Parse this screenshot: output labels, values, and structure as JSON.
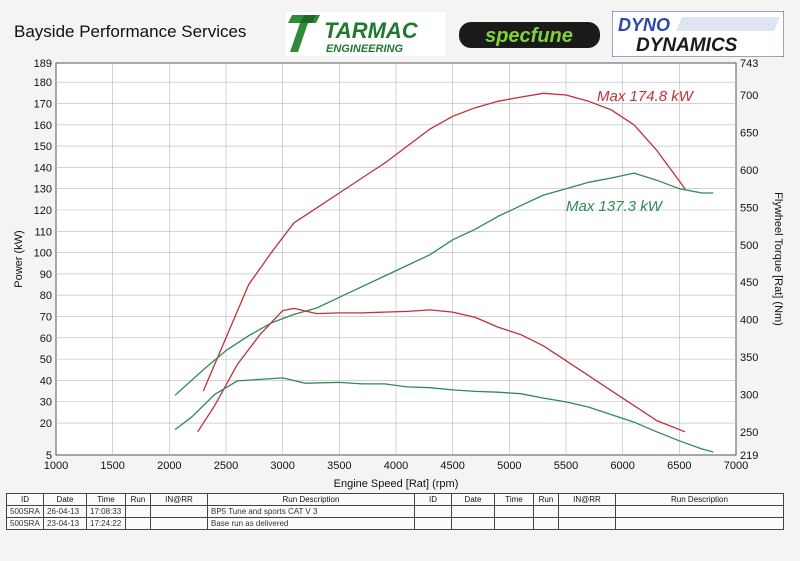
{
  "header": {
    "shop_name": "Bayside Performance Services",
    "logo1": {
      "main": "TARMAC",
      "sub": "ENGINEERING"
    },
    "logo2": {
      "main": "specfune"
    },
    "logo3": {
      "line1": "DYNO",
      "line2": "DYNAMICS"
    }
  },
  "chart_data": {
    "type": "line",
    "xlabel": "Engine Speed [Rat] (rpm)",
    "ylabel": "Power (kW)",
    "y2label": "Flywheel Torque [Rat] (Nm)",
    "xlim": [
      1000,
      7000
    ],
    "ylim": [
      5,
      189
    ],
    "y2lim": [
      219,
      743
    ],
    "grid": true,
    "x_ticks": [
      "1000",
      "1500",
      "2000",
      "2500",
      "3000",
      "3500",
      "4000",
      "4500",
      "5000",
      "5500",
      "6000",
      "6500",
      "7000"
    ],
    "y_ticks": [
      "5",
      "20",
      "30",
      "40",
      "50",
      "60",
      "70",
      "80",
      "90",
      "100",
      "110",
      "120",
      "130",
      "140",
      "150",
      "160",
      "170",
      "180",
      "189"
    ],
    "y2_ticks": [
      "219",
      "250",
      "300",
      "350",
      "400",
      "450",
      "500",
      "550",
      "600",
      "650",
      "700",
      "743"
    ],
    "annotations": [
      {
        "text": "Max 174.8 kW",
        "color": "#c0303a"
      },
      {
        "text": "Max 137.3 kW",
        "color": "#2e8a57"
      }
    ],
    "series": [
      {
        "id": "run1_power",
        "axis": "left",
        "color": "#c0303a",
        "x": [
          2300,
          2500,
          2700,
          2900,
          3100,
          3300,
          3500,
          3700,
          3900,
          4100,
          4300,
          4500,
          4700,
          4900,
          5100,
          5300,
          5500,
          5700,
          5900,
          6100,
          6300,
          6550
        ],
        "y": [
          35,
          60,
          85,
          100,
          114,
          121,
          128,
          135,
          142,
          150,
          158,
          164,
          168,
          171,
          173,
          174.8,
          174,
          171,
          167,
          160,
          148,
          130
        ]
      },
      {
        "id": "run2_power",
        "axis": "left",
        "color": "#2e8a57",
        "x": [
          2050,
          2300,
          2500,
          2700,
          2900,
          3100,
          3300,
          3500,
          3700,
          3900,
          4100,
          4300,
          4500,
          4700,
          4900,
          5100,
          5300,
          5500,
          5700,
          5900,
          6100,
          6300,
          6500,
          6700,
          6800
        ],
        "y": [
          33,
          45,
          54,
          61,
          67,
          71,
          74,
          79,
          84,
          89,
          94,
          99,
          106,
          111,
          117,
          122,
          127,
          130,
          133,
          135,
          137.3,
          134,
          130,
          128,
          128
        ]
      },
      {
        "id": "run1_torque",
        "axis": "right",
        "color": "#c0303a",
        "x": [
          2250,
          2400,
          2600,
          2800,
          3000,
          3100,
          3300,
          3500,
          3700,
          3900,
          4100,
          4300,
          4500,
          4700,
          4900,
          5100,
          5300,
          5500,
          5700,
          5900,
          6100,
          6300,
          6550
        ],
        "y": [
          250,
          285,
          340,
          380,
          412,
          415,
          408,
          409,
          409,
          410,
          411,
          413,
          410,
          403,
          390,
          380,
          365,
          345,
          325,
          305,
          285,
          265,
          250
        ]
      },
      {
        "id": "run2_torque",
        "axis": "right",
        "color": "#2e8a57",
        "x": [
          2050,
          2200,
          2400,
          2600,
          2800,
          3000,
          3200,
          3500,
          3700,
          3900,
          4100,
          4300,
          4500,
          4700,
          4900,
          5100,
          5300,
          5500,
          5700,
          5900,
          6100,
          6300,
          6500,
          6700,
          6800
        ],
        "y": [
          253,
          270,
          300,
          318,
          320,
          322,
          315,
          316,
          314,
          314,
          310,
          309,
          306,
          304,
          303,
          301,
          295,
          290,
          283,
          273,
          263,
          250,
          238,
          227,
          223
        ]
      }
    ]
  },
  "runs_table": {
    "headers": [
      "ID",
      "Date",
      "Time",
      "Run",
      "IN@RR",
      "Run Description",
      "ID",
      "Date",
      "Time",
      "Run",
      "IN@RR",
      "Run Description"
    ],
    "rows": [
      {
        "id": "500SRA",
        "date": "26-04-13",
        "time": "17:08:33",
        "run": "",
        "inrr": "",
        "desc": "BP5 Tune and sports CAT V  3"
      },
      {
        "id": "500SRA",
        "date": "23-04-13",
        "time": "17:24:22",
        "run": "",
        "inrr": "",
        "desc": "Base run as delivered"
      }
    ]
  }
}
